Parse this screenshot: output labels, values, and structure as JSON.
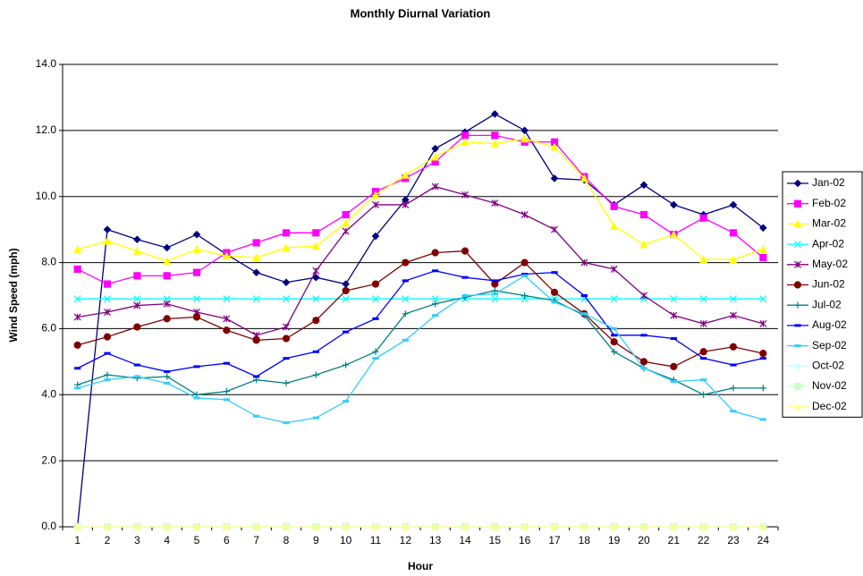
{
  "chart_data": {
    "type": "line",
    "title": "Monthly Diurnal Variation",
    "x_label": "Hour",
    "y_label": "Wind Speed (mph)",
    "categories": [
      1,
      2,
      3,
      4,
      5,
      6,
      7,
      8,
      9,
      10,
      11,
      12,
      13,
      14,
      15,
      16,
      17,
      18,
      19,
      20,
      21,
      22,
      23,
      24
    ],
    "ylim": [
      0,
      14
    ],
    "yticks": [
      {
        "value": 0,
        "label": "0.0"
      },
      {
        "value": 2,
        "label": "2.0"
      },
      {
        "value": 4,
        "label": "4.0"
      },
      {
        "value": 6,
        "label": "6.0"
      },
      {
        "value": 8,
        "label": "8.0"
      },
      {
        "value": 10,
        "label": "10.0"
      },
      {
        "value": 12,
        "label": "12.0"
      },
      {
        "value": 14,
        "label": "14.0"
      }
    ],
    "grid": true,
    "legend": "right",
    "series": [
      {
        "name": "Jan-02",
        "color": "#000080",
        "marker": "diamond",
        "values": [
          0.0,
          9.0,
          8.7,
          8.45,
          8.85,
          8.25,
          7.7,
          7.4,
          7.55,
          7.35,
          8.8,
          9.9,
          11.45,
          11.95,
          12.5,
          12.0,
          10.55,
          10.5,
          9.75,
          10.35,
          9.75,
          9.45,
          9.75,
          9.05
        ]
      },
      {
        "name": "Feb-02",
        "color": "#ff00ff",
        "marker": "square",
        "values": [
          7.8,
          7.35,
          7.6,
          7.6,
          7.7,
          8.3,
          8.6,
          8.9,
          8.9,
          9.45,
          10.15,
          10.55,
          11.05,
          11.85,
          11.85,
          11.65,
          11.65,
          10.6,
          9.7,
          9.45,
          8.85,
          9.35,
          8.9,
          8.15
        ]
      },
      {
        "name": "Mar-02",
        "color": "#ffff00",
        "marker": "triangle",
        "values": [
          8.4,
          8.65,
          8.35,
          8.05,
          8.4,
          8.2,
          8.15,
          8.45,
          8.5,
          9.2,
          10.05,
          10.65,
          11.2,
          11.65,
          11.6,
          11.75,
          11.5,
          10.55,
          9.1,
          8.55,
          8.85,
          8.1,
          8.1,
          8.4
        ]
      },
      {
        "name": "Apr-02",
        "color": "#00ffff",
        "marker": "x",
        "values": [
          6.9,
          6.9,
          6.9,
          6.9,
          6.9,
          6.9,
          6.9,
          6.9,
          6.9,
          6.9,
          6.9,
          6.9,
          6.9,
          6.9,
          6.9,
          6.9,
          6.9,
          6.9,
          6.9,
          6.9,
          6.9,
          6.9,
          6.9,
          6.9
        ]
      },
      {
        "name": "May-02",
        "color": "#800080",
        "marker": "star",
        "values": [
          6.35,
          6.5,
          6.7,
          6.75,
          6.5,
          6.3,
          5.8,
          6.05,
          7.75,
          8.95,
          9.75,
          9.75,
          10.3,
          10.05,
          9.8,
          9.45,
          9.0,
          8.0,
          7.8,
          7.0,
          6.4,
          6.15,
          6.4,
          6.15
        ]
      },
      {
        "name": "Jun-02",
        "color": "#800000",
        "marker": "circle",
        "values": [
          5.5,
          5.75,
          6.05,
          6.3,
          6.35,
          5.95,
          5.65,
          5.7,
          6.25,
          7.15,
          7.35,
          8.0,
          8.3,
          8.35,
          7.35,
          8.0,
          7.1,
          6.45,
          5.6,
          5.0,
          4.85,
          5.3,
          5.45,
          5.25
        ]
      },
      {
        "name": "Jul-02",
        "color": "#008080",
        "marker": "plus",
        "values": [
          4.3,
          4.6,
          4.5,
          4.55,
          4.0,
          4.1,
          4.45,
          4.35,
          4.6,
          4.9,
          5.3,
          6.45,
          6.75,
          6.95,
          7.15,
          7.0,
          6.85,
          6.4,
          5.3,
          4.8,
          4.45,
          4.0,
          4.2,
          4.2
        ]
      },
      {
        "name": "Aug-02",
        "color": "#0000ff",
        "marker": "dash",
        "values": [
          4.8,
          5.25,
          4.9,
          4.7,
          4.85,
          4.95,
          4.55,
          5.1,
          5.3,
          5.9,
          6.3,
          7.45,
          7.75,
          7.55,
          7.45,
          7.65,
          7.7,
          7.0,
          5.8,
          5.8,
          5.7,
          5.1,
          4.9,
          5.1
        ]
      },
      {
        "name": "Sep-02",
        "color": "#33ccff",
        "marker": "dash",
        "values": [
          4.2,
          4.45,
          4.55,
          4.35,
          3.9,
          3.85,
          3.35,
          3.15,
          3.3,
          3.8,
          5.1,
          5.65,
          6.4,
          7.0,
          7.05,
          7.6,
          6.8,
          6.45,
          6.0,
          4.8,
          4.4,
          4.45,
          3.5,
          3.25
        ]
      },
      {
        "name": "Oct-02",
        "color": "#ccffff",
        "marker": "diamond",
        "values": [
          0,
          0,
          0,
          0,
          0,
          0,
          0,
          0,
          0,
          0,
          0,
          0,
          0,
          0,
          0,
          0,
          0,
          0,
          0,
          0,
          0,
          0,
          0,
          0
        ]
      },
      {
        "name": "Nov-02",
        "color": "#ccffcc",
        "marker": "square",
        "values": [
          0,
          0,
          0,
          0,
          0,
          0,
          0,
          0,
          0,
          0,
          0,
          0,
          0,
          0,
          0,
          0,
          0,
          0,
          0,
          0,
          0,
          0,
          0,
          0
        ]
      },
      {
        "name": "Dec-02",
        "color": "#ffff99",
        "marker": "triangle",
        "values": [
          0,
          0,
          0,
          0,
          0,
          0,
          0,
          0,
          0,
          0,
          0,
          0,
          0,
          0,
          0,
          0,
          0,
          0,
          0,
          0,
          0,
          0,
          0,
          0
        ]
      }
    ]
  }
}
